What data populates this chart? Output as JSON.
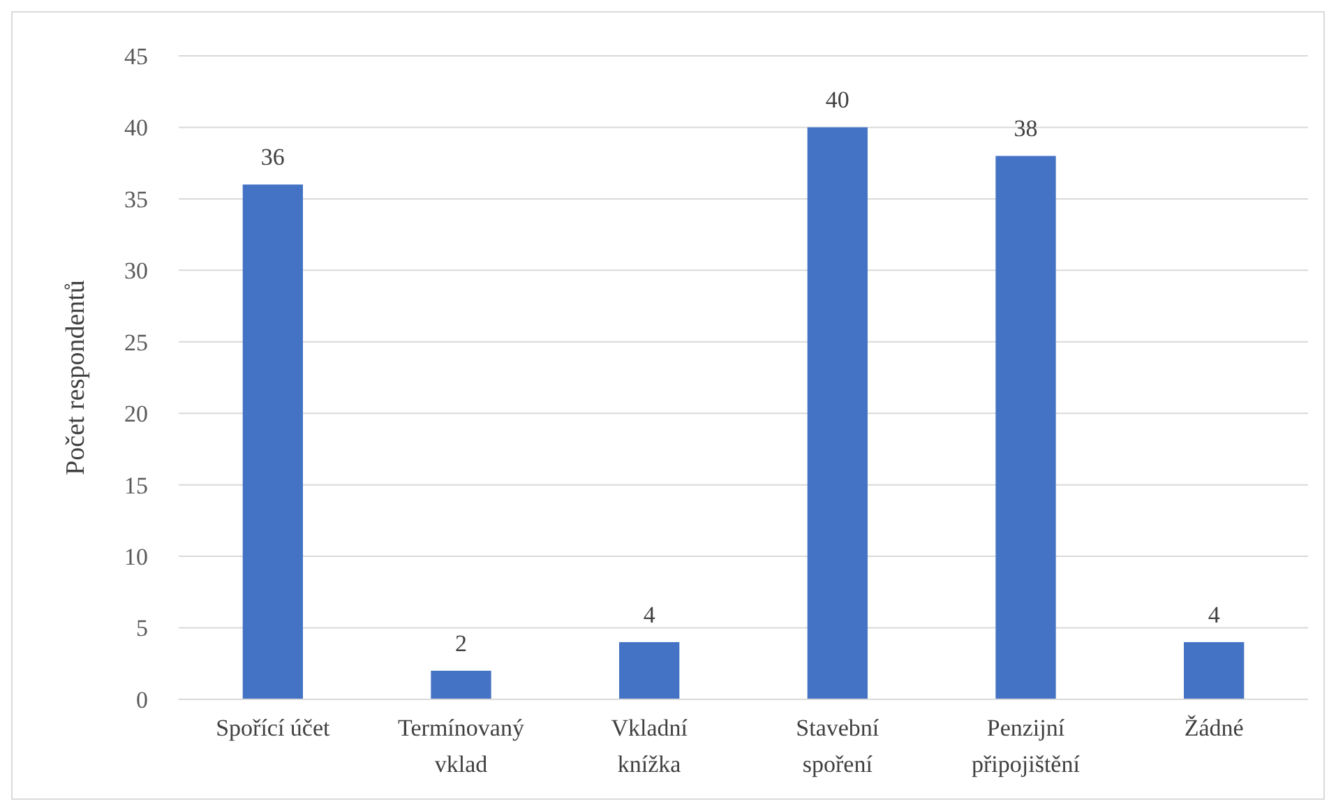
{
  "chart_data": {
    "type": "bar",
    "ylabel": "Počet respondentů",
    "categories": [
      "Spořící účet",
      "Termínovaný vklad",
      "Vkladní knížka",
      "Stavební spoření",
      "Penzijní připojištění",
      "Žádné"
    ],
    "values": [
      36,
      2,
      4,
      40,
      38,
      4
    ],
    "color": "#4472c4",
    "ylim": [
      0,
      45
    ],
    "yticks": [
      0,
      5,
      10,
      15,
      20,
      25,
      30,
      35,
      40,
      45
    ],
    "grid": "y",
    "data_labels": true
  }
}
